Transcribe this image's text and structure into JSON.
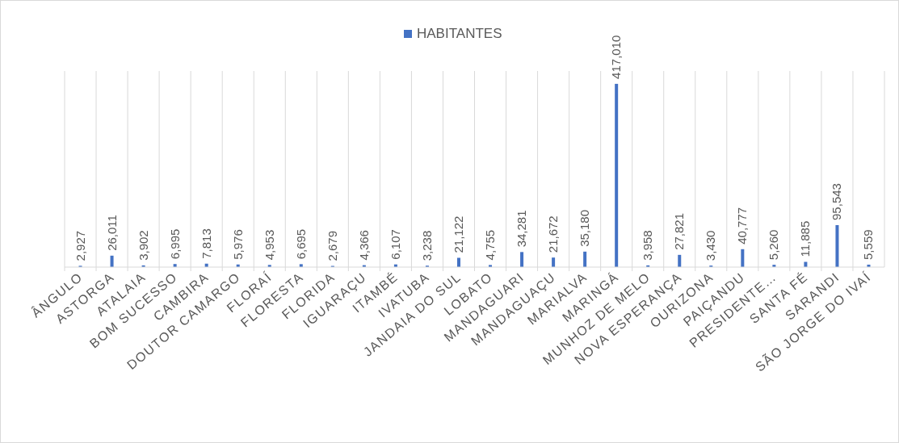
{
  "chart_data": {
    "type": "bar",
    "categories": [
      "ÂNGULO",
      "ASTORGA",
      "ATALAIA",
      "BOM SUCESSO",
      "CAMBIRA",
      "DOUTOR CAMARGO",
      "FLORAÍ",
      "FLORESTA",
      "FLORIDA",
      "IGUARAÇU",
      "ITAMBÉ",
      "IVATUBA",
      "JANDAIA DO SUL",
      "LOBATO",
      "MANDAGUARI",
      "MANDAGUAÇU",
      "MARIALVA",
      "MARINGÁ",
      "MUNHOZ DE MELO",
      "NOVA ESPERANÇA",
      "OURIZONA",
      "PAIÇANDU",
      "PRESIDENTE…",
      "SANTA FÉ",
      "SARANDI",
      "SÃO JORGE DO IVAÍ"
    ],
    "series": [
      {
        "name": "HABITANTES",
        "color": "#4472c4",
        "values": [
          2927,
          26011,
          3902,
          6995,
          7813,
          5976,
          4953,
          6695,
          2679,
          4366,
          6107,
          3238,
          21122,
          4755,
          34281,
          21672,
          35180,
          417010,
          3958,
          27821,
          3430,
          40777,
          5260,
          11885,
          95543,
          5559
        ],
        "value_labels": [
          "2,927",
          "26,011",
          "3,902",
          "6,995",
          "7,813",
          "5,976",
          "4,953",
          "6,695",
          "2,679",
          "4,366",
          "6,107",
          "3,238",
          "21,122",
          "4,755",
          "34,281",
          "21,672",
          "35,180",
          "417,010",
          "3,958",
          "27,821",
          "3,430",
          "40,777",
          "5,260",
          "11,885",
          "95,543",
          "5,559"
        ]
      }
    ],
    "grid": "x",
    "legend": "top"
  }
}
